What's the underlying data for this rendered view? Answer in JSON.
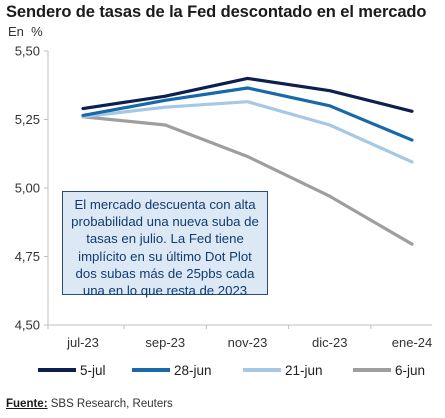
{
  "header": {
    "title": "Sendero de tasas de la Fed descontado en el mercado",
    "unit": "En  %"
  },
  "annotation": {
    "text": "El mercado descuenta con alta probabilidad una nueva suba de tasas en julio. La Fed tiene implícito en su último Dot Plot dos subas más de 25pbs cada una en lo que resta de 2023"
  },
  "footer": {
    "source_label": "Fuente:",
    "source_text": " SBS Research, Reuters"
  },
  "chart_data": {
    "type": "line",
    "categories": [
      "jul-23",
      "sep-23",
      "nov-23",
      "dic-23",
      "ene-24"
    ],
    "ylim": [
      4.5,
      5.5
    ],
    "yticks": [
      "5,50",
      "5,25",
      "5,00",
      "4,75",
      "4,50"
    ],
    "ytick_values": [
      5.5,
      5.25,
      5.0,
      4.75,
      4.5
    ],
    "grid": false,
    "legend_position": "bottom",
    "series": [
      {
        "name": "5-jul",
        "color": "#0d1f4f",
        "values": [
          5.29,
          5.335,
          5.4,
          5.355,
          5.28
        ]
      },
      {
        "name": "28-jun",
        "color": "#1769aa",
        "values": [
          5.265,
          5.32,
          5.365,
          5.3,
          5.175
        ]
      },
      {
        "name": "21-jun",
        "color": "#a6c8e5",
        "values": [
          5.26,
          5.295,
          5.315,
          5.23,
          5.095
        ]
      },
      {
        "name": "6-jun",
        "color": "#9e9e9e",
        "values": [
          5.26,
          5.23,
          5.115,
          4.97,
          4.795
        ]
      }
    ]
  }
}
